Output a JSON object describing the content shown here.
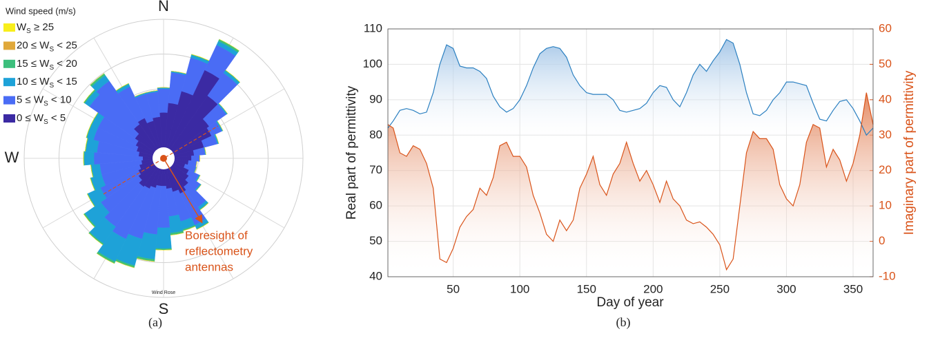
{
  "chart_data": [
    {
      "type": "windrose",
      "title": "Wind Rose",
      "legend_title": "Wind speed (m/s)",
      "panel_label": "(a)",
      "annotation": [
        "Boresight of",
        "reflectometry",
        "antennas"
      ],
      "theta": [
        0,
        10,
        20,
        30,
        40,
        50,
        60,
        70,
        80,
        90,
        100,
        110,
        120,
        130,
        140,
        150,
        160,
        170,
        180,
        190,
        200,
        210,
        220,
        230,
        240,
        250,
        260,
        270,
        280,
        290,
        300,
        310,
        320,
        330,
        340,
        350
      ],
      "theta_ticks": [
        {
          "value": 0,
          "label": "N"
        },
        {
          "value": 270,
          "label": "W"
        },
        {
          "value": 180,
          "label": "S"
        }
      ],
      "thetagrid": [
        0,
        30,
        60,
        90,
        120,
        150,
        180,
        210,
        240,
        270,
        300,
        330
      ],
      "rlim": [
        0,
        100
      ],
      "rgrid": [
        25,
        50,
        75,
        100
      ],
      "series": [
        {
          "name": "0 ≤ WS < 5",
          "color": "#3b2aa3",
          "values": [
            33,
            40,
            50,
            70,
            55,
            40,
            38,
            30,
            22,
            20,
            18,
            16,
            20,
            22,
            25,
            28,
            25,
            22,
            20,
            20,
            22,
            24,
            25,
            22,
            20,
            18,
            16,
            15,
            18,
            20,
            22,
            25,
            30,
            32,
            28,
            30
          ]
        },
        {
          "name": "5 ≤ WS < 10",
          "color": "#4a6cf5",
          "values": [
            17,
            22,
            25,
            20,
            20,
            15,
            8,
            10,
            8,
            6,
            6,
            8,
            8,
            10,
            18,
            25,
            22,
            20,
            30,
            35,
            38,
            40,
            35,
            33,
            30,
            28,
            30,
            35,
            30,
            32,
            30,
            40,
            38,
            25,
            20,
            18
          ]
        },
        {
          "name": "10 ≤ WS < 15",
          "color": "#1ea2d8",
          "values": [
            1,
            1,
            2,
            3,
            2,
            1,
            1,
            1,
            0.5,
            0,
            0,
            0.5,
            1,
            1,
            2,
            3,
            6,
            12,
            15,
            18,
            20,
            18,
            15,
            14,
            10,
            8,
            6,
            7,
            8,
            5,
            5,
            4,
            5,
            2,
            1,
            1
          ]
        },
        {
          "name": "15 ≤ WS < 20",
          "color": "#3cbf7c",
          "values": [
            0,
            0,
            0.5,
            1.5,
            0.5,
            0,
            0,
            0,
            0,
            0,
            0,
            0,
            0,
            0,
            0.5,
            0.5,
            1,
            1.5,
            1,
            1.5,
            1.5,
            1.5,
            1,
            1,
            0.5,
            0.5,
            0.5,
            0.5,
            0.5,
            0.5,
            0.5,
            1,
            1.5,
            0.5,
            0,
            0
          ]
        },
        {
          "name": "20 ≤ WS < 25",
          "color": "#e0a83a",
          "values": [
            0,
            0,
            0,
            0,
            0,
            0,
            0,
            0,
            0,
            0,
            0,
            0,
            0,
            0,
            0,
            0,
            0,
            0,
            0,
            0,
            0,
            0,
            0,
            0,
            0,
            0,
            0,
            0,
            0,
            0,
            0,
            0,
            0,
            0,
            0,
            0
          ]
        },
        {
          "name": "WS ≥ 25",
          "color": "#f8ee1c",
          "values": [
            0,
            0,
            0,
            0,
            0,
            0,
            0,
            0,
            0,
            0,
            0,
            0,
            0,
            0,
            0,
            0,
            0,
            0,
            0,
            0,
            0,
            0,
            0,
            0,
            0,
            0,
            0,
            0,
            0,
            0,
            0,
            0,
            0,
            0,
            0,
            0
          ]
        }
      ]
    },
    {
      "type": "line",
      "panel_label": "(b)",
      "xlabel": "Day of year",
      "ylabel": "Real part of permittivity",
      "y2label": "Imaginary part of permittivity",
      "x": [
        1,
        5,
        10,
        15,
        20,
        25,
        30,
        35,
        40,
        45,
        50,
        55,
        60,
        65,
        70,
        75,
        80,
        85,
        90,
        95,
        100,
        105,
        110,
        115,
        120,
        125,
        130,
        135,
        140,
        145,
        150,
        155,
        160,
        165,
        170,
        175,
        180,
        185,
        190,
        195,
        200,
        205,
        210,
        215,
        220,
        225,
        230,
        235,
        240,
        245,
        250,
        255,
        260,
        265,
        270,
        275,
        280,
        285,
        290,
        295,
        300,
        305,
        310,
        315,
        320,
        325,
        330,
        335,
        340,
        345,
        350,
        355,
        360,
        365
      ],
      "xlim": [
        1,
        365
      ],
      "xticks": [
        50,
        100,
        150,
        200,
        250,
        300,
        350
      ],
      "ylim": [
        40,
        110
      ],
      "yticks": [
        40,
        50,
        60,
        70,
        80,
        90,
        100,
        110
      ],
      "y2lim": [
        -10,
        60
      ],
      "y2ticks": [
        -10,
        0,
        10,
        20,
        30,
        40,
        50,
        60
      ],
      "grid": true,
      "series": [
        {
          "color": "#2a7fc0",
          "values": [
            82,
            84,
            87,
            87.5,
            87,
            86,
            86.5,
            92,
            100,
            105.5,
            104.5,
            99.5,
            99,
            99,
            98,
            96,
            91,
            88,
            86.5,
            87.5,
            90,
            94,
            99,
            103,
            104.5,
            105,
            104.5,
            102,
            97,
            94,
            92,
            91.5,
            91.5,
            91.5,
            90,
            87,
            86.5,
            87,
            87.5,
            89,
            92,
            94,
            93.5,
            90,
            88,
            92,
            97,
            100,
            98,
            101,
            103.5,
            107,
            106,
            100,
            92,
            86,
            85.5,
            87,
            90,
            92,
            95,
            95,
            94.5,
            94,
            89,
            84.5,
            84,
            87,
            89.5,
            90,
            87.5,
            84,
            80,
            82
          ]
        },
        {
          "color": "#d95319",
          "axis": "y2",
          "values": [
            33,
            32,
            25,
            24,
            27,
            26,
            22,
            15,
            -5,
            -6,
            -2,
            4,
            7,
            9,
            15,
            13,
            18,
            27,
            28,
            24,
            24,
            21,
            13,
            8,
            2,
            0,
            6,
            3,
            6,
            15,
            19,
            24,
            16,
            13,
            19,
            22,
            28,
            22,
            17,
            20,
            16,
            11,
            17,
            12,
            10,
            6,
            5,
            5.5,
            4,
            2,
            -1,
            -8,
            -5,
            10,
            25,
            31,
            29,
            29,
            26,
            16,
            12,
            10,
            16,
            28,
            33,
            32,
            21,
            26,
            23,
            17,
            22,
            30,
            42,
            33
          ]
        }
      ]
    }
  ]
}
